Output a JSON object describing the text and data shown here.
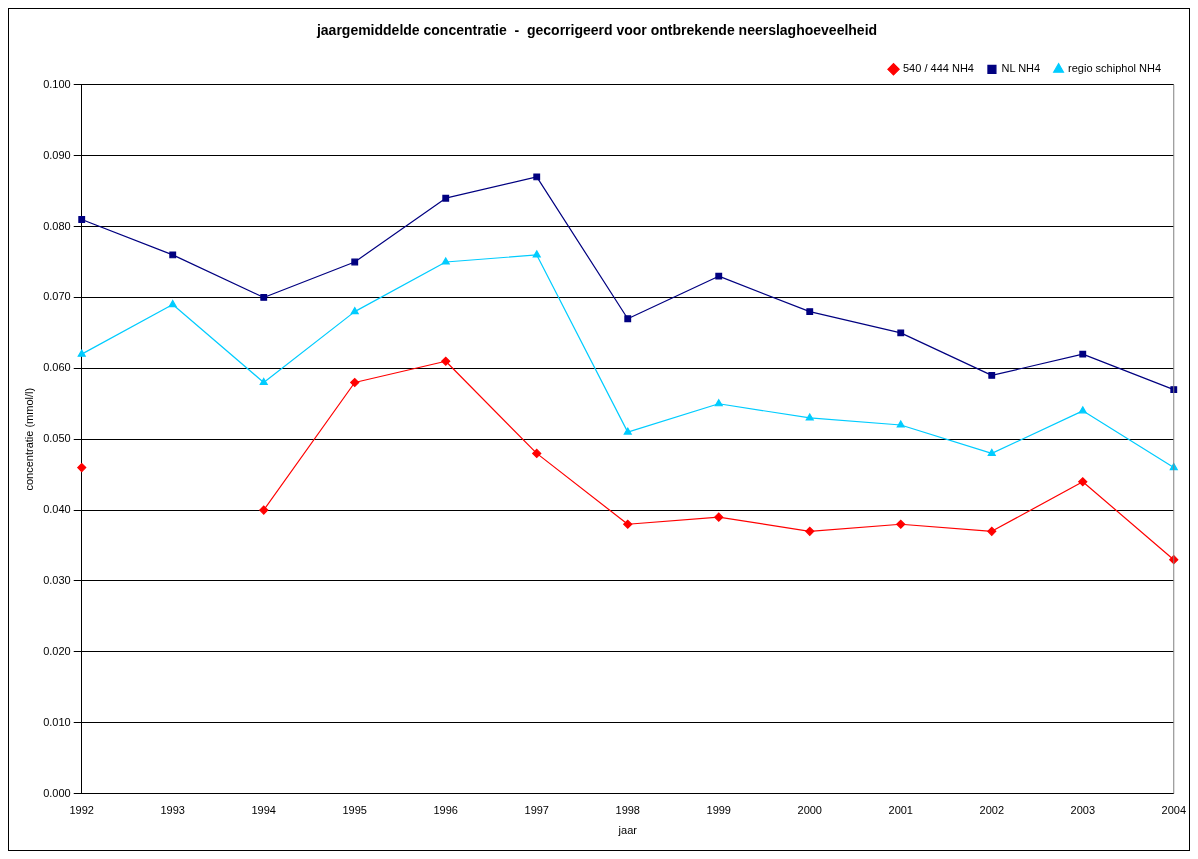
{
  "chart_data": {
    "type": "line",
    "title": "jaargemiddelde concentratie  -  gecorrigeerd voor ontbrekende neerslaghoeveelheid",
    "xlabel": "jaar",
    "ylabel": "concentratie (mmol/l)",
    "categories": [
      "1992",
      "1993",
      "1994",
      "1995",
      "1996",
      "1997",
      "1998",
      "1999",
      "2000",
      "2001",
      "2002",
      "2003",
      "2004"
    ],
    "series": [
      {
        "name": "540 / 444 NH4",
        "color": "#ff0000",
        "marker": "diamond",
        "values": [
          0.046,
          null,
          0.04,
          0.058,
          0.061,
          0.048,
          0.038,
          0.039,
          0.037,
          0.038,
          0.037,
          0.044,
          0.033
        ]
      },
      {
        "name": "NL NH4",
        "color": "#000080",
        "marker": "square",
        "values": [
          0.081,
          0.076,
          0.07,
          0.075,
          0.084,
          0.087,
          0.067,
          0.073,
          0.068,
          0.065,
          0.059,
          0.062,
          0.057
        ]
      },
      {
        "name": "regio schiphol NH4",
        "color": "#00ccff",
        "marker": "triangle",
        "values": [
          0.062,
          0.069,
          0.058,
          0.068,
          0.075,
          0.076,
          0.051,
          0.055,
          0.053,
          0.052,
          0.048,
          0.054,
          0.046
        ]
      }
    ],
    "ylim": [
      0,
      0.1
    ],
    "yticks": [
      {
        "value": 0,
        "label": "0.000"
      },
      {
        "value": 0.01,
        "label": "0.010"
      },
      {
        "value": 0.02,
        "label": "0.020"
      },
      {
        "value": 0.03,
        "label": "0.030"
      },
      {
        "value": 0.04,
        "label": "0.040"
      },
      {
        "value": 0.05,
        "label": "0.050"
      },
      {
        "value": 0.06,
        "label": "0.060"
      },
      {
        "value": 0.07,
        "label": "0.070"
      },
      {
        "value": 0.08,
        "label": "0.080"
      },
      {
        "value": 0.09,
        "label": "0.090"
      },
      {
        "value": 0.1,
        "label": "0.100"
      }
    ],
    "grid": "y",
    "legend": "top right",
    "line_style": "solid"
  }
}
